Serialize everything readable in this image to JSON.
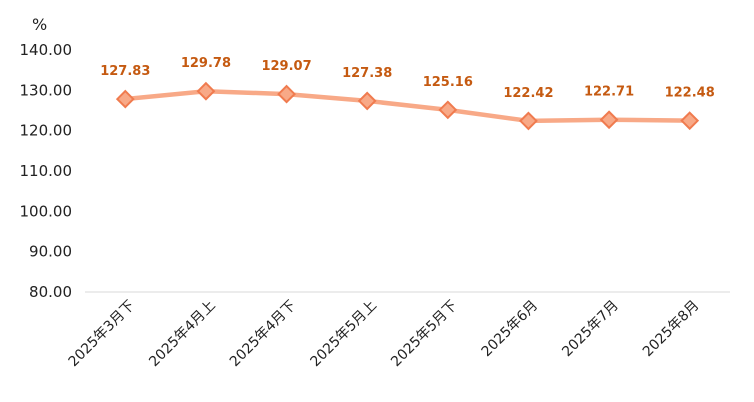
{
  "chart_data": {
    "type": "line",
    "unit": "%",
    "categories": [
      "2025年3月下",
      "2025年4月上",
      "2025年4月下",
      "2025年5月上",
      "2025年5月下",
      "2025年6月",
      "2025年7月",
      "2025年8月"
    ],
    "series": [
      {
        "values": [
          127.83,
          129.78,
          129.07,
          127.38,
          125.16,
          122.42,
          122.71,
          122.48
        ],
        "data_labels": [
          "127.83",
          "129.78",
          "129.07",
          "127.38",
          "125.16",
          "122.42",
          "122.71",
          "122.48"
        ]
      }
    ],
    "y_ticks": [
      "80.00",
      "90.00",
      "100.00",
      "110.00",
      "120.00",
      "130.00",
      "140.00"
    ],
    "ylim": [
      80,
      140
    ],
    "grid": false,
    "legend": "none",
    "colors": {
      "line": "#F8A987",
      "marker_fill": "#F8A987",
      "marker_stroke": "#F07B4F",
      "label": "#C55A11",
      "axis": "#D9D9D9"
    }
  }
}
